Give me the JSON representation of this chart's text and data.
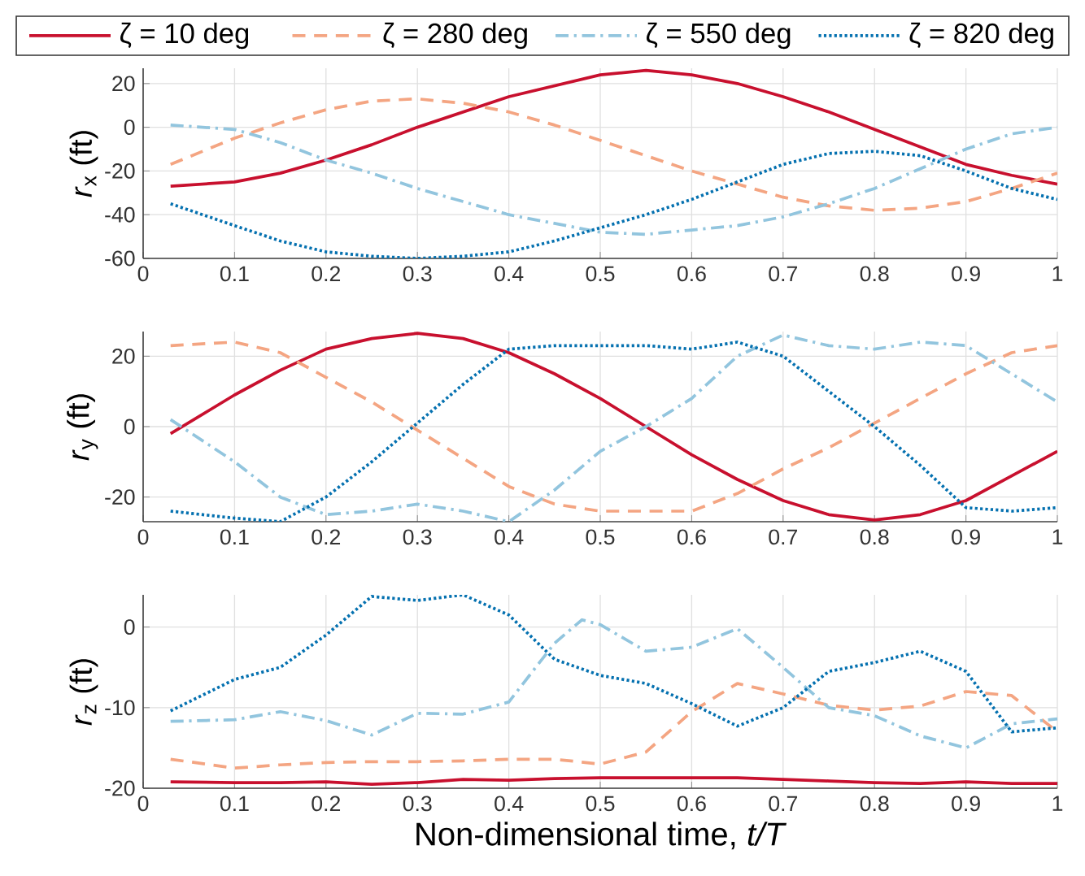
{
  "chart_data": [
    {
      "type": "line",
      "ylabel": "*r*$_{x}$ (ft)",
      "xlim": [
        0,
        1
      ],
      "ylim": [
        -60,
        27
      ],
      "xticks": [
        0,
        0.1,
        0.2,
        0.3,
        0.4,
        0.5,
        0.6,
        0.7,
        0.8,
        0.9,
        1
      ],
      "yticks": [
        -60,
        -40,
        -20,
        0,
        20
      ],
      "grid": true,
      "legend": "top",
      "x": [
        0.03,
        0.1,
        0.15,
        0.2,
        0.25,
        0.3,
        0.35,
        0.4,
        0.45,
        0.5,
        0.55,
        0.6,
        0.65,
        0.7,
        0.75,
        0.8,
        0.85,
        0.9,
        0.95,
        1
      ],
      "series": [
        {
          "name": "ζ = 10 deg",
          "color": "#c8102e",
          "line_style": "solid",
          "values": [
            -27,
            -25,
            -21,
            -15,
            -8,
            0,
            7,
            14,
            19,
            24,
            26,
            24,
            20,
            14,
            7,
            -1,
            -9,
            -17,
            -22,
            -26
          ]
        },
        {
          "name": "ζ = 280 deg",
          "color": "#f4a582",
          "line_style": "dashed",
          "values": [
            -17,
            -5,
            2,
            8,
            12,
            13,
            11,
            7,
            1,
            -6,
            -13,
            -20,
            -26,
            -32,
            -36,
            -38,
            -37,
            -34,
            -28,
            -21
          ]
        },
        {
          "name": "ζ = 550 deg",
          "color": "#92c5de",
          "line_style": "dashdot",
          "values": [
            1,
            -1,
            -7,
            -15,
            -21,
            -28,
            -34,
            -40,
            -44,
            -48,
            -49,
            -47,
            -45,
            -41,
            -35,
            -28,
            -19,
            -10,
            -3,
            0
          ]
        },
        {
          "name": "ζ = 820 deg",
          "color": "#0571b0",
          "line_style": "dotted",
          "values": [
            -35,
            -45,
            -52,
            -57,
            -59,
            -60,
            -59,
            -57,
            -52,
            -46,
            -40,
            -33,
            -25,
            -17,
            -12,
            -11,
            -13,
            -20,
            -28,
            -33
          ]
        }
      ]
    },
    {
      "type": "line",
      "ylabel": "*r*$_{y}$ (ft)",
      "xlim": [
        0,
        1
      ],
      "ylim": [
        -27,
        27
      ],
      "xticks": [
        0,
        0.1,
        0.2,
        0.3,
        0.4,
        0.5,
        0.6,
        0.7,
        0.8,
        0.9,
        1
      ],
      "yticks": [
        -20,
        0,
        20
      ],
      "grid": true,
      "x": [
        0.03,
        0.1,
        0.15,
        0.2,
        0.25,
        0.3,
        0.35,
        0.4,
        0.45,
        0.5,
        0.55,
        0.6,
        0.65,
        0.7,
        0.75,
        0.8,
        0.85,
        0.9,
        0.95,
        1
      ],
      "series": [
        {
          "color": "#c8102e",
          "line_style": "solid",
          "values": [
            -2,
            9,
            16,
            22,
            25,
            26.5,
            25,
            21,
            15,
            8,
            0,
            -8,
            -15,
            -21,
            -25,
            -26.5,
            -25,
            -21,
            -14,
            -7
          ]
        },
        {
          "color": "#f4a582",
          "line_style": "dashed",
          "values": [
            23,
            24,
            21,
            14,
            7,
            -1,
            -9,
            -17,
            -22,
            -24,
            -24,
            -24,
            -19,
            -12,
            -6,
            1,
            8,
            15,
            21,
            23
          ]
        },
        {
          "color": "#92c5de",
          "line_style": "dashdot",
          "values": [
            2,
            -10,
            -20,
            -25,
            -24,
            -22,
            -24,
            -27,
            -18,
            -7,
            0,
            8,
            20,
            26,
            23,
            22,
            24,
            23,
            15,
            7
          ]
        },
        {
          "color": "#0571b0",
          "line_style": "dotted",
          "values": [
            -24,
            -26,
            -27,
            -20,
            -10,
            1,
            12,
            22,
            23,
            23,
            23,
            22,
            24,
            20,
            10,
            0,
            -11,
            -23,
            -24,
            -23
          ]
        }
      ]
    },
    {
      "type": "line",
      "ylabel": "*r*$_{z}$ (ft)",
      "xlabel": "Non-dimensional time, *t/T*",
      "xlim": [
        0,
        1
      ],
      "ylim": [
        -20,
        4
      ],
      "xticks": [
        0,
        0.1,
        0.2,
        0.3,
        0.4,
        0.5,
        0.6,
        0.7,
        0.8,
        0.9,
        1
      ],
      "yticks": [
        -20,
        -10,
        0
      ],
      "grid": true,
      "x": [
        0.03,
        0.1,
        0.15,
        0.2,
        0.25,
        0.3,
        0.35,
        0.4,
        0.45,
        0.5,
        0.55,
        0.6,
        0.65,
        0.7,
        0.75,
        0.8,
        0.85,
        0.9,
        0.95,
        1
      ],
      "series": [
        {
          "color": "#c8102e",
          "line_style": "solid",
          "values": [
            -19.2,
            -19.3,
            -19.3,
            -19.2,
            -19.5,
            -19.3,
            -18.9,
            -19.0,
            -18.8,
            -18.7,
            -18.7,
            -18.7,
            -18.7,
            -18.9,
            -19.1,
            -19.3,
            -19.4,
            -19.2,
            -19.4,
            -19.4
          ]
        },
        {
          "color": "#f4a582",
          "line_style": "dashed",
          "values": [
            -16.4,
            -17.5,
            -17.1,
            -16.8,
            -16.7,
            -16.7,
            -16.6,
            -16.4,
            -16.4,
            -17,
            -15.5,
            -10.5,
            -7,
            -8.3,
            -9.7,
            -10.3,
            -9.8,
            -8,
            -8.5,
            -13
          ]
        },
        {
          "color": "#92c5de",
          "line_style": "dashdot",
          "x": [
            0.03,
            0.1,
            0.15,
            0.2,
            0.25,
            0.3,
            0.35,
            0.4,
            0.45,
            0.48,
            0.5,
            0.55,
            0.6,
            0.65,
            0.7,
            0.75,
            0.8,
            0.85,
            0.9,
            0.95,
            1
          ],
          "values": [
            -11.7,
            -11.5,
            -10.5,
            -11.6,
            -13.4,
            -10.7,
            -10.8,
            -9.3,
            -2,
            0.9,
            0.3,
            -3,
            -2.5,
            -0.2,
            -5,
            -10,
            -11,
            -13.5,
            -15,
            -12,
            -11.4
          ]
        },
        {
          "color": "#0571b0",
          "line_style": "dotted",
          "values": [
            -10.4,
            -6.5,
            -5,
            -1,
            3.8,
            3.3,
            4,
            1.5,
            -4,
            -6,
            -7,
            -9.5,
            -12.3,
            -10,
            -5.5,
            -4.4,
            -3,
            -5.5,
            -13,
            -12.5
          ]
        }
      ]
    }
  ]
}
